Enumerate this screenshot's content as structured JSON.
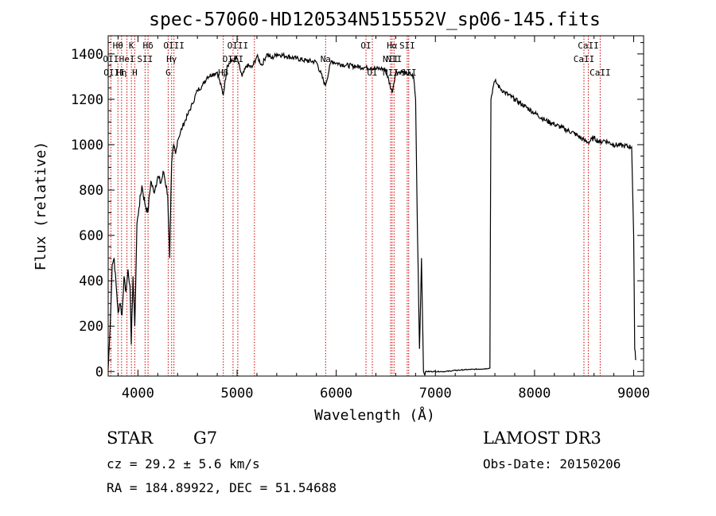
{
  "chart_data": {
    "type": "line",
    "title": "spec-57060-HD120534N515552V_sp06-145.fits",
    "xlabel": "Wavelength (Å)",
    "ylabel": "Flux (relative)",
    "xlim": [
      3700,
      9100
    ],
    "ylim": [
      -20,
      1480
    ],
    "xticks": [
      4000,
      5000,
      6000,
      7000,
      8000,
      9000
    ],
    "xtick_labels": [
      "4000",
      "5000",
      "6000",
      "7000",
      "8000",
      "9000"
    ],
    "yticks": [
      0,
      200,
      400,
      600,
      800,
      1000,
      1200,
      1400
    ],
    "ytick_labels": [
      "0",
      "200",
      "400",
      "600",
      "800",
      "1000",
      "1200",
      "1400"
    ],
    "series": [
      {
        "name": "flux",
        "x": [
          3700,
          3720,
          3740,
          3760,
          3780,
          3800,
          3820,
          3840,
          3860,
          3880,
          3900,
          3920,
          3933,
          3950,
          3968,
          3990,
          4010,
          4040,
          4070,
          4100,
          4130,
          4160,
          4200,
          4230,
          4260,
          4300,
          4320,
          4340,
          4360,
          4380,
          4400,
          4450,
          4500,
          4550,
          4600,
          4650,
          4700,
          4750,
          4800,
          4861,
          4900,
          4950,
          5000,
          5050,
          5100,
          5150,
          5200,
          5250,
          5300,
          5350,
          5400,
          5500,
          5600,
          5700,
          5800,
          5890,
          5950,
          6000,
          6100,
          6200,
          6300,
          6350,
          6400,
          6450,
          6500,
          6563,
          6600,
          6650,
          6700,
          6750,
          6780,
          6800,
          6820,
          6840,
          6860,
          6880,
          6900,
          7000,
          7100,
          7200,
          7300,
          7400,
          7500,
          7550,
          7560,
          7580,
          7600,
          7620,
          7650,
          7700,
          7800,
          7900,
          8000,
          8100,
          8200,
          8300,
          8400,
          8498,
          8542,
          8600,
          8662,
          8700,
          8800,
          8900,
          8980,
          9000,
          9010,
          9020
        ],
        "values": [
          10,
          200,
          470,
          500,
          380,
          260,
          300,
          250,
          420,
          350,
          450,
          380,
          120,
          420,
          200,
          650,
          720,
          820,
          740,
          700,
          840,
          790,
          860,
          830,
          880,
          780,
          500,
          920,
          1000,
          960,
          1020,
          1080,
          1130,
          1180,
          1240,
          1260,
          1300,
          1310,
          1320,
          1220,
          1350,
          1370,
          1380,
          1300,
          1350,
          1340,
          1390,
          1350,
          1400,
          1380,
          1400,
          1390,
          1380,
          1370,
          1365,
          1260,
          1370,
          1360,
          1350,
          1345,
          1340,
          1340,
          1335,
          1335,
          1330,
          1230,
          1320,
          1320,
          1315,
          1310,
          1300,
          1200,
          600,
          100,
          500,
          0,
          0,
          0,
          0,
          5,
          8,
          10,
          12,
          15,
          1200,
          1250,
          1280,
          1270,
          1250,
          1230,
          1200,
          1170,
          1140,
          1110,
          1090,
          1070,
          1050,
          1020,
          1010,
          1030,
          1010,
          1020,
          1000,
          995,
          990,
          600,
          100,
          50
        ]
      }
    ],
    "line_labels": [
      {
        "text": "Hθ",
        "x": 3798,
        "row": 1
      },
      {
        "text": "K",
        "x": 3934,
        "row": 1
      },
      {
        "text": "Hδ",
        "x": 4102,
        "row": 1
      },
      {
        "text": "OIII",
        "x": 4363,
        "row": 1
      },
      {
        "text": "OIII",
        "x": 5007,
        "row": 1
      },
      {
        "text": "OI",
        "x": 6300,
        "row": 1
      },
      {
        "text": "Hα",
        "x": 6563,
        "row": 1
      },
      {
        "text": "SII",
        "x": 6716,
        "row": 1
      },
      {
        "text": "CaII",
        "x": 8542,
        "row": 1
      },
      {
        "text": "OII",
        "x": 3727,
        "row": 2
      },
      {
        "text": "HeI",
        "x": 3889,
        "row": 2
      },
      {
        "text": "SII",
        "x": 4072,
        "row": 2
      },
      {
        "text": "Hγ",
        "x": 4340,
        "row": 2
      },
      {
        "text": "OIII",
        "x": 4959,
        "row": 2
      },
      {
        "text": "Na",
        "x": 5893,
        "row": 2
      },
      {
        "text": "NII",
        "x": 6548,
        "row": 2
      },
      {
        "text": "NII",
        "x": 6583,
        "row": 2
      },
      {
        "text": "CaII",
        "x": 8498,
        "row": 2
      },
      {
        "text": "OIII",
        "x": 3760,
        "row": 3
      },
      {
        "text": "Hη",
        "x": 3835,
        "row": 3
      },
      {
        "text": "H",
        "x": 3968,
        "row": 3
      },
      {
        "text": "G",
        "x": 4305,
        "row": 3
      },
      {
        "text": "Hβ",
        "x": 4861,
        "row": 3
      },
      {
        "text": "OI",
        "x": 6364,
        "row": 3
      },
      {
        "text": "NII",
        "x": 6548,
        "row": 3
      },
      {
        "text": "SII",
        "x": 6731,
        "row": 3
      },
      {
        "text": "CaII",
        "x": 8662,
        "row": 3
      }
    ],
    "marker_lines": [
      3727,
      3798,
      3835,
      3889,
      3934,
      3968,
      4072,
      4102,
      4305,
      4340,
      4363,
      4861,
      4959,
      5007,
      5175,
      5893,
      6300,
      6364,
      6548,
      6563,
      6583,
      6716,
      6731,
      8498,
      8542,
      8662
    ]
  },
  "info": {
    "object_type": "STAR",
    "subclass": "G7",
    "survey": "LAMOST DR3",
    "cz": "cz = 29.2 ± 5.6 km/s",
    "obs_date": "Obs-Date: 20150206",
    "coords": "RA = 184.89922, DEC =  51.54688"
  },
  "colors": {
    "spectrum": "#000000",
    "marker_lines": "#cc0000",
    "axes": "#000000",
    "background": "#ffffff"
  }
}
